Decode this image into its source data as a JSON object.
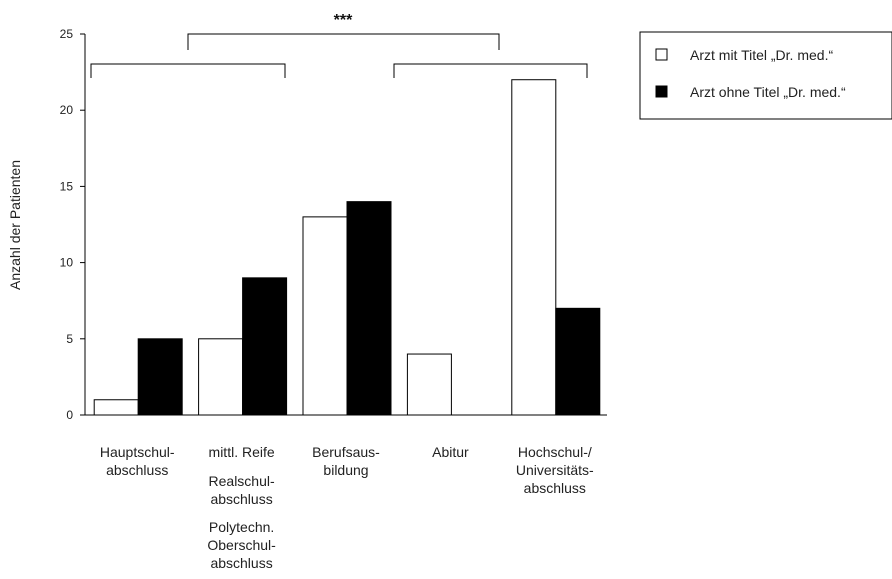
{
  "chart_data": {
    "type": "bar",
    "ylabel": "Anzahl der Patienten",
    "ylim": [
      0,
      25
    ],
    "yticks": [
      "0",
      "5",
      "10",
      "15",
      "20",
      "25"
    ],
    "categories": [
      [
        "Hauptschul-",
        "abschluss"
      ],
      [
        "mittl. Reife",
        "Realschul-",
        "abschluss",
        "Polytechn.",
        "Oberschul-",
        "abschluss"
      ],
      [
        "Berufsaus-",
        "bildung"
      ],
      [
        "Abitur"
      ],
      [
        "Hochschul-/",
        "Universitäts-",
        "abschluss"
      ]
    ],
    "series": [
      {
        "name": "Arzt mit Titel „Dr. med.“",
        "values": [
          1,
          5,
          13,
          4,
          22
        ],
        "color": "#ffffff"
      },
      {
        "name": "Arzt ohne Titel „Dr. med.“",
        "values": [
          5,
          9,
          14,
          0,
          7
        ],
        "color": "#000000"
      }
    ],
    "significance": "***",
    "legend_position": "top-right",
    "grid": false
  }
}
